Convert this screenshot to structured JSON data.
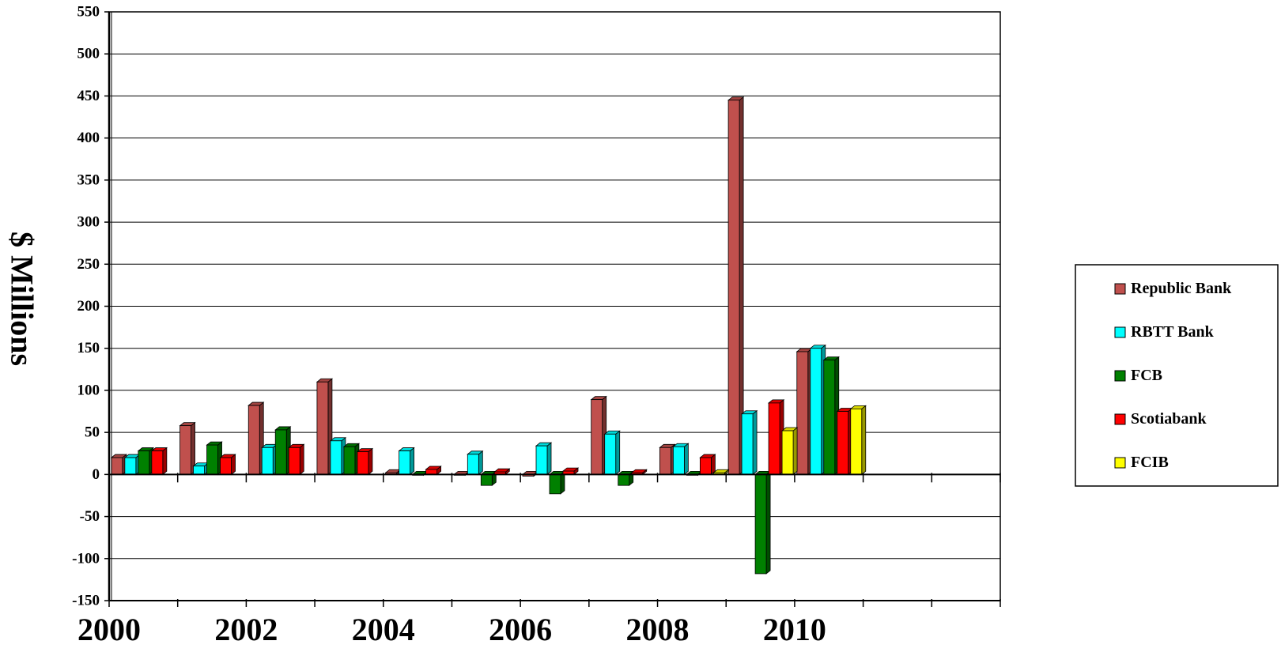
{
  "chart_data": {
    "type": "bar",
    "title": "",
    "xlabel": "",
    "ylabel": "$ Millions",
    "ylim": [
      -150,
      550
    ],
    "yticks": [
      550,
      500,
      450,
      400,
      350,
      300,
      250,
      200,
      150,
      100,
      50,
      0,
      -50,
      -100,
      -150
    ],
    "categories": [
      "2000",
      "2001",
      "2002",
      "2003",
      "2004",
      "2005",
      "2006",
      "2007",
      "2008",
      "2009",
      "2010",
      "2011",
      "2012"
    ],
    "category_labels": [
      "2000",
      "",
      "2002",
      "",
      "2004",
      "",
      "2006",
      "",
      "2008",
      "",
      "2010",
      "",
      ""
    ],
    "grid": true,
    "legend_position": "right",
    "series": [
      {
        "name": "Republic Bank",
        "color": "#c0504d",
        "values": [
          20,
          58,
          82,
          110,
          2,
          0,
          -2,
          89,
          32,
          445,
          146,
          null,
          null
        ]
      },
      {
        "name": "RBTT Bank",
        "color": "#00ffff",
        "values": [
          20,
          10,
          32,
          40,
          28,
          24,
          34,
          48,
          33,
          72,
          150,
          null,
          null
        ]
      },
      {
        "name": "FCB",
        "color": "#008000",
        "values": [
          28,
          35,
          53,
          33,
          0,
          -13,
          -23,
          -13,
          0,
          -118,
          136,
          null,
          null
        ]
      },
      {
        "name": "Scotiabank",
        "color": "#ff0000",
        "values": [
          28,
          20,
          32,
          27,
          6,
          3,
          4,
          2,
          20,
          85,
          75,
          null,
          null
        ]
      },
      {
        "name": "FCIB",
        "color": "#ffff00",
        "values": [
          null,
          null,
          null,
          null,
          null,
          null,
          null,
          null,
          2,
          52,
          78,
          null,
          null
        ]
      }
    ]
  }
}
